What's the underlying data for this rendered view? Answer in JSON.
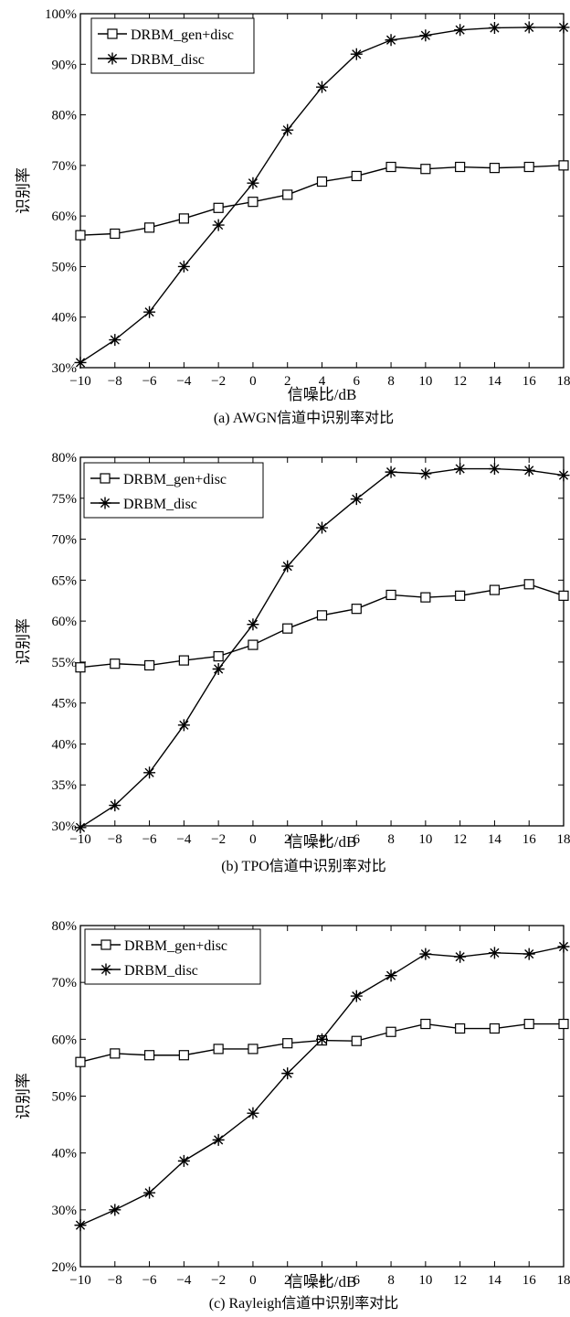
{
  "chart_data": [
    {
      "type": "line",
      "caption": "(a)  AWGN信道中识别率对比",
      "xlabel": "信噪比/dB",
      "ylabel": "识别率",
      "x": [
        -10,
        -8,
        -6,
        -4,
        -2,
        0,
        2,
        4,
        6,
        8,
        10,
        12,
        14,
        16,
        18
      ],
      "xlim": [
        -10,
        18
      ],
      "xticks": [
        "−10",
        "−8",
        "−6",
        "−4",
        "−2",
        "0",
        "2",
        "4",
        "6",
        "8",
        "10",
        "12",
        "14",
        "16",
        "18"
      ],
      "ylim": [
        30,
        100
      ],
      "yticks": [
        "30%",
        "40%",
        "50%",
        "60%",
        "70%",
        "80%",
        "90%",
        "100%"
      ],
      "legend_position": "top-left",
      "grid": false,
      "series": [
        {
          "name": "DRBM_gen+disc",
          "marker": "square",
          "values": [
            56.2,
            56.5,
            57.7,
            59.5,
            61.6,
            62.8,
            64.2,
            66.8,
            67.9,
            69.7,
            69.3,
            69.7,
            69.5,
            69.7,
            70.0
          ]
        },
        {
          "name": "DRBM_disc",
          "marker": "star",
          "values": [
            31.0,
            35.5,
            41.0,
            50.0,
            58.2,
            66.5,
            77.0,
            85.5,
            92.0,
            94.8,
            95.7,
            96.8,
            97.2,
            97.3,
            97.3
          ]
        }
      ]
    },
    {
      "type": "line",
      "caption": "(b)  TPO信道中识别率对比",
      "xlabel": "信噪比/dB",
      "ylabel": "识别率",
      "x": [
        -10,
        -8,
        -6,
        -4,
        -2,
        0,
        2,
        4,
        6,
        8,
        10,
        12,
        14,
        16,
        18
      ],
      "xlim": [
        -10,
        18
      ],
      "xticks": [
        "−10",
        "−8",
        "−6",
        "−4",
        "−2",
        "0",
        "2",
        "4",
        "6",
        "8",
        "10",
        "12",
        "14",
        "16",
        "18"
      ],
      "ylim": [
        30,
        80
      ],
      "yticks": [
        "30%",
        "35%",
        "40%",
        "45%",
        "55%",
        "60%",
        "65%",
        "70%",
        "75%",
        "80%"
      ],
      "legend_position": "top-left",
      "grid": false,
      "series": [
        {
          "name": "DRBM_gen+disc",
          "marker": "square",
          "values": [
            53.7,
            54.6,
            54.2,
            55.2,
            55.7,
            57.1,
            59.1,
            60.7,
            61.5,
            63.2,
            62.9,
            63.1,
            63.8,
            64.5,
            63.1
          ]
        },
        {
          "name": "DRBM_disc",
          "marker": "star",
          "values": [
            29.8,
            32.5,
            36.5,
            42.3,
            53.3,
            59.6,
            66.7,
            71.4,
            74.9,
            78.2,
            78.0,
            78.6,
            78.6,
            78.4,
            77.8
          ]
        }
      ]
    },
    {
      "type": "line",
      "caption": "(c)  Rayleigh信道中识别率对比",
      "xlabel": "信噪比/dB",
      "ylabel": "识别率",
      "x": [
        -10,
        -8,
        -6,
        -4,
        -2,
        0,
        2,
        4,
        6,
        8,
        10,
        12,
        14,
        16,
        18
      ],
      "xlim": [
        -10,
        18
      ],
      "xticks": [
        "−10",
        "−8",
        "−6",
        "−4",
        "−2",
        "0",
        "2",
        "4",
        "6",
        "8",
        "10",
        "12",
        "14",
        "16",
        "18"
      ],
      "ylim": [
        20,
        80
      ],
      "yticks": [
        "20%",
        "30%",
        "40%",
        "50%",
        "60%",
        "70%",
        "80%"
      ],
      "legend_position": "top-left",
      "grid": false,
      "series": [
        {
          "name": "DRBM_gen+disc",
          "marker": "square",
          "values": [
            56.0,
            57.5,
            57.2,
            57.2,
            58.3,
            58.3,
            59.3,
            59.8,
            59.7,
            61.3,
            62.7,
            61.9,
            61.9,
            62.7,
            62.7
          ]
        },
        {
          "name": "DRBM_disc",
          "marker": "star",
          "values": [
            27.3,
            30.0,
            33.0,
            38.6,
            42.3,
            47.0,
            54.0,
            60.0,
            67.6,
            71.2,
            75.0,
            74.5,
            75.2,
            75.0,
            76.3
          ]
        }
      ]
    }
  ]
}
